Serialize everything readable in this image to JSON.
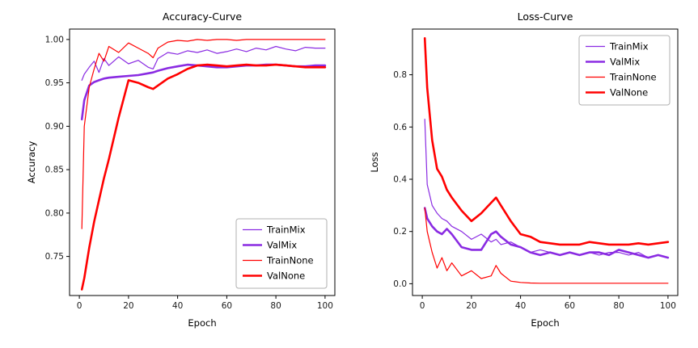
{
  "figure": {
    "background": "#ffffff"
  },
  "chart_data": [
    {
      "type": "line",
      "title": "Accuracy-Curve",
      "xlabel": "Epoch",
      "ylabel": "Accuracy",
      "xlim": [
        -4,
        104
      ],
      "ylim": [
        0.705,
        1.012
      ],
      "xticks": [
        0,
        20,
        40,
        60,
        80,
        100
      ],
      "xtick_labels": [
        "0",
        "20",
        "40",
        "60",
        "80",
        "100"
      ],
      "yticks": [
        0.75,
        0.8,
        0.85,
        0.9,
        0.95,
        1.0
      ],
      "ytick_labels": [
        "0.75",
        "0.80",
        "0.85",
        "0.90",
        "0.95",
        "1.00"
      ],
      "grid": false,
      "legend_position": "lower-right",
      "x": [
        1,
        2,
        4,
        6,
        8,
        10,
        12,
        16,
        20,
        24,
        28,
        30,
        32,
        36,
        40,
        44,
        48,
        52,
        56,
        60,
        64,
        68,
        72,
        76,
        80,
        84,
        88,
        92,
        96,
        100
      ],
      "series": [
        {
          "name": "TrainMix",
          "color": "#8A2BE2",
          "width": 1.2,
          "y": [
            0.953,
            0.96,
            0.968,
            0.975,
            0.962,
            0.978,
            0.97,
            0.98,
            0.972,
            0.976,
            0.968,
            0.966,
            0.978,
            0.985,
            0.983,
            0.987,
            0.985,
            0.988,
            0.984,
            0.986,
            0.989,
            0.986,
            0.99,
            0.988,
            0.992,
            0.989,
            0.987,
            0.991,
            0.99,
            0.99
          ]
        },
        {
          "name": "ValMix",
          "color": "#8A2BE2",
          "width": 2.6,
          "y": [
            0.908,
            0.93,
            0.947,
            0.951,
            0.953,
            0.955,
            0.956,
            0.957,
            0.958,
            0.959,
            0.961,
            0.962,
            0.964,
            0.967,
            0.969,
            0.971,
            0.97,
            0.969,
            0.968,
            0.968,
            0.969,
            0.97,
            0.97,
            0.971,
            0.971,
            0.97,
            0.969,
            0.969,
            0.97,
            0.97
          ]
        },
        {
          "name": "TrainNone",
          "color": "#FF0000",
          "width": 1.2,
          "y": [
            0.782,
            0.9,
            0.945,
            0.966,
            0.984,
            0.975,
            0.992,
            0.985,
            0.996,
            0.99,
            0.984,
            0.979,
            0.99,
            0.997,
            0.999,
            0.998,
            1.0,
            0.999,
            1.0,
            1.0,
            0.999,
            1.0,
            1.0,
            1.0,
            1.0,
            1.0,
            1.0,
            1.0,
            1.0,
            1.0
          ]
        },
        {
          "name": "ValNone",
          "color": "#FF0000",
          "width": 2.6,
          "y": [
            0.712,
            0.725,
            0.76,
            0.79,
            0.815,
            0.84,
            0.862,
            0.91,
            0.953,
            0.95,
            0.945,
            0.943,
            0.947,
            0.955,
            0.96,
            0.966,
            0.97,
            0.971,
            0.97,
            0.969,
            0.97,
            0.971,
            0.97,
            0.97,
            0.971,
            0.97,
            0.969,
            0.968,
            0.968,
            0.968
          ]
        }
      ]
    },
    {
      "type": "line",
      "title": "Loss-Curve",
      "xlabel": "Epoch",
      "ylabel": "Loss",
      "xlim": [
        -4,
        104
      ],
      "ylim": [
        -0.045,
        0.975
      ],
      "xticks": [
        0,
        20,
        40,
        60,
        80,
        100
      ],
      "xtick_labels": [
        "0",
        "20",
        "40",
        "60",
        "80",
        "100"
      ],
      "yticks": [
        0.0,
        0.2,
        0.4,
        0.6,
        0.8
      ],
      "ytick_labels": [
        "0.0",
        "0.2",
        "0.4",
        "0.6",
        "0.8"
      ],
      "grid": false,
      "legend_position": "upper-right",
      "x": [
        1,
        2,
        4,
        6,
        8,
        10,
        12,
        16,
        20,
        24,
        28,
        30,
        32,
        36,
        40,
        44,
        48,
        52,
        56,
        60,
        64,
        68,
        72,
        76,
        80,
        84,
        88,
        92,
        96,
        100
      ],
      "series": [
        {
          "name": "TrainMix",
          "color": "#8A2BE2",
          "width": 1.2,
          "y": [
            0.63,
            0.38,
            0.3,
            0.27,
            0.25,
            0.24,
            0.22,
            0.2,
            0.17,
            0.19,
            0.16,
            0.17,
            0.15,
            0.16,
            0.14,
            0.12,
            0.13,
            0.12,
            0.11,
            0.12,
            0.11,
            0.12,
            0.11,
            0.12,
            0.12,
            0.11,
            0.12,
            0.1,
            0.11,
            0.1
          ]
        },
        {
          "name": "ValMix",
          "color": "#8A2BE2",
          "width": 2.6,
          "y": [
            0.29,
            0.25,
            0.22,
            0.2,
            0.19,
            0.21,
            0.19,
            0.14,
            0.13,
            0.13,
            0.19,
            0.2,
            0.18,
            0.15,
            0.14,
            0.12,
            0.11,
            0.12,
            0.11,
            0.12,
            0.11,
            0.12,
            0.12,
            0.11,
            0.13,
            0.12,
            0.11,
            0.1,
            0.11,
            0.1
          ]
        },
        {
          "name": "TrainNone",
          "color": "#FF0000",
          "width": 1.2,
          "y": [
            0.29,
            0.2,
            0.12,
            0.06,
            0.1,
            0.05,
            0.08,
            0.03,
            0.05,
            0.02,
            0.03,
            0.07,
            0.04,
            0.01,
            0.005,
            0.003,
            0.002,
            0.002,
            0.002,
            0.002,
            0.002,
            0.002,
            0.002,
            0.002,
            0.002,
            0.002,
            0.002,
            0.002,
            0.002,
            0.002
          ]
        },
        {
          "name": "ValNone",
          "color": "#FF0000",
          "width": 2.6,
          "y": [
            0.94,
            0.75,
            0.55,
            0.44,
            0.41,
            0.36,
            0.33,
            0.28,
            0.24,
            0.27,
            0.31,
            0.33,
            0.3,
            0.24,
            0.19,
            0.18,
            0.16,
            0.155,
            0.15,
            0.15,
            0.15,
            0.16,
            0.155,
            0.15,
            0.15,
            0.15,
            0.155,
            0.15,
            0.155,
            0.16
          ]
        }
      ]
    }
  ]
}
